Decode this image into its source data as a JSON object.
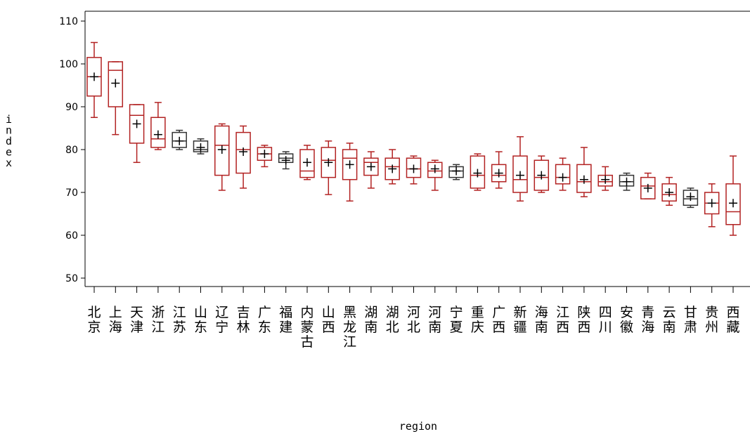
{
  "chart_data": {
    "type": "box",
    "title": "",
    "xlabel": "region",
    "ylabel": "index",
    "ylim": [
      50,
      110
    ],
    "yticks": [
      50,
      60,
      70,
      80,
      90,
      100,
      110
    ],
    "grid": false,
    "colors": {
      "box": "#b22222",
      "box_alt": "#333333",
      "mean_marker": "#000000",
      "axis": "#000000"
    },
    "categories": [
      "北京",
      "上海",
      "天津",
      "浙江",
      "江苏",
      "山东",
      "辽宁",
      "吉林",
      "广东",
      "福建",
      "内蒙古",
      "山西",
      "黑龙江",
      "湖南",
      "湖北",
      "河北",
      "河南",
      "宁夏",
      "重庆",
      "广西",
      "新疆",
      "海南",
      "江西",
      "陕西",
      "四川",
      "安徽",
      "青海",
      "云南",
      "甘肃",
      "贵州",
      "西藏"
    ],
    "series": [
      {
        "min": 87.5,
        "q1": 92.5,
        "median": 97,
        "q3": 101.5,
        "max": 105,
        "mean": 97
      },
      {
        "min": 83.5,
        "q1": 90,
        "median": 98.5,
        "q3": 100.5,
        "max": 100.5,
        "mean": 95.5
      },
      {
        "min": 77,
        "q1": 81.5,
        "median": 88,
        "q3": 90.5,
        "max": 90.5,
        "mean": 86
      },
      {
        "min": 80,
        "q1": 80.5,
        "median": 82.5,
        "q3": 87.5,
        "max": 91,
        "mean": 83.5
      },
      {
        "min": 80,
        "q1": 80.5,
        "median": 82,
        "q3": 84,
        "max": 84.5,
        "mean": 82
      },
      {
        "min": 79,
        "q1": 79.5,
        "median": 80,
        "q3": 82,
        "max": 82.5,
        "mean": 80.5
      },
      {
        "min": 70.5,
        "q1": 74,
        "median": 81,
        "q3": 85.5,
        "max": 86,
        "mean": 80
      },
      {
        "min": 71,
        "q1": 74.5,
        "median": 80,
        "q3": 84,
        "max": 85.5,
        "mean": 79.5
      },
      {
        "min": 76,
        "q1": 77.5,
        "median": 79,
        "q3": 80.5,
        "max": 81,
        "mean": 79
      },
      {
        "min": 75.5,
        "q1": 77,
        "median": 78,
        "q3": 79,
        "max": 79.5,
        "mean": 77.5
      },
      {
        "min": 73,
        "q1": 73.5,
        "median": 75,
        "q3": 80,
        "max": 81,
        "mean": 77
      },
      {
        "min": 69.5,
        "q1": 73.5,
        "median": 77.5,
        "q3": 80.5,
        "max": 82,
        "mean": 77
      },
      {
        "min": 68,
        "q1": 73,
        "median": 78,
        "q3": 80,
        "max": 81.5,
        "mean": 76.5
      },
      {
        "min": 71,
        "q1": 74,
        "median": 77,
        "q3": 78,
        "max": 79.5,
        "mean": 76
      },
      {
        "min": 72,
        "q1": 73,
        "median": 76,
        "q3": 78,
        "max": 80,
        "mean": 75.5
      },
      {
        "min": 72,
        "q1": 73.5,
        "median": 75.5,
        "q3": 78,
        "max": 78.5,
        "mean": 75.5
      },
      {
        "min": 70.5,
        "q1": 73.5,
        "median": 75,
        "q3": 77,
        "max": 77.5,
        "mean": 75.5
      },
      {
        "min": 73,
        "q1": 73.5,
        "median": 75,
        "q3": 76,
        "max": 76.5,
        "mean": 75
      },
      {
        "min": 70.5,
        "q1": 71,
        "median": 74,
        "q3": 78.5,
        "max": 79,
        "mean": 74.5
      },
      {
        "min": 71,
        "q1": 72.5,
        "median": 74,
        "q3": 76.5,
        "max": 79.5,
        "mean": 74.5
      },
      {
        "min": 68,
        "q1": 70,
        "median": 73,
        "q3": 78.5,
        "max": 83,
        "mean": 74
      },
      {
        "min": 70,
        "q1": 70.5,
        "median": 73.5,
        "q3": 77.5,
        "max": 78.5,
        "mean": 74
      },
      {
        "min": 70.5,
        "q1": 72,
        "median": 73.5,
        "q3": 76.5,
        "max": 78,
        "mean": 73.5
      },
      {
        "min": 69,
        "q1": 70,
        "median": 72.5,
        "q3": 76.5,
        "max": 80.5,
        "mean": 73
      },
      {
        "min": 70.5,
        "q1": 71.5,
        "median": 72.5,
        "q3": 74,
        "max": 76,
        "mean": 73
      },
      {
        "min": 70.5,
        "q1": 71.5,
        "median": 72.5,
        "q3": 74,
        "max": 74.5,
        "mean": 72.5
      },
      {
        "min": 68.5,
        "q1": 68.5,
        "median": 71.5,
        "q3": 73.5,
        "max": 74.5,
        "mean": 71
      },
      {
        "min": 67,
        "q1": 68,
        "median": 69.5,
        "q3": 72,
        "max": 73.5,
        "mean": 70
      },
      {
        "min": 66.5,
        "q1": 67,
        "median": 68.5,
        "q3": 70.5,
        "max": 71,
        "mean": 69
      },
      {
        "min": 62,
        "q1": 65,
        "median": 67.5,
        "q3": 70,
        "max": 72,
        "mean": 67.5
      },
      {
        "min": 60,
        "q1": 62.5,
        "median": 65.5,
        "q3": 72,
        "max": 78.5,
        "mean": 67.5
      }
    ]
  }
}
